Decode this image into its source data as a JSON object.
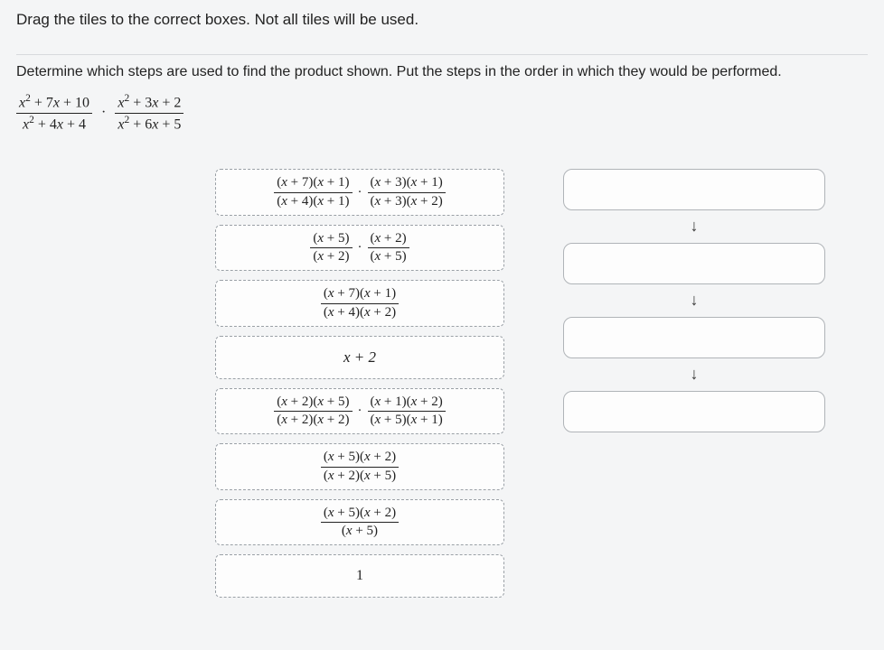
{
  "instruction": "Drag the tiles to the correct boxes. Not all tiles will be used.",
  "prompt": "Determine which steps are used to find the product shown. Put the steps in the order in which they would be performed.",
  "given": {
    "frac1_num": "x² + 7x + 10",
    "frac1_den": "x² + 4x + 4",
    "frac2_num": "x² + 3x + 2",
    "frac2_den": "x² + 6x + 5",
    "operator": "·"
  },
  "tiles": [
    {
      "type": "product_of_fracs",
      "a_num": "(x + 7)(x + 1)",
      "a_den": "(x + 4)(x + 1)",
      "b_num": "(x + 3)(x + 1)",
      "b_den": "(x + 3)(x + 2)"
    },
    {
      "type": "product_of_fracs",
      "a_num": "(x + 5)",
      "a_den": "(x + 2)",
      "b_num": "(x + 2)",
      "b_den": "(x + 5)"
    },
    {
      "type": "frac",
      "num": "(x + 7)(x + 1)",
      "den": "(x + 4)(x + 2)"
    },
    {
      "type": "plain",
      "text": "x + 2"
    },
    {
      "type": "product_of_fracs",
      "a_num": "(x + 2)(x + 5)",
      "a_den": "(x + 2)(x + 2)",
      "b_num": "(x + 1)(x + 2)",
      "b_den": "(x + 5)(x + 1)"
    },
    {
      "type": "frac",
      "num": "(x + 5)(x + 2)",
      "den": "(x + 2)(x + 5)"
    },
    {
      "type": "frac",
      "num": "(x + 5)(x + 2)",
      "den": "(x + 5)"
    },
    {
      "type": "plain",
      "text": "1"
    }
  ],
  "slot_count": 4,
  "arrow_glyph": "↓",
  "colors": {
    "page_bg": "#f4f5f6",
    "tile_border": "#9aa0a6",
    "slot_border": "#b0b4b8",
    "text": "#222222"
  }
}
